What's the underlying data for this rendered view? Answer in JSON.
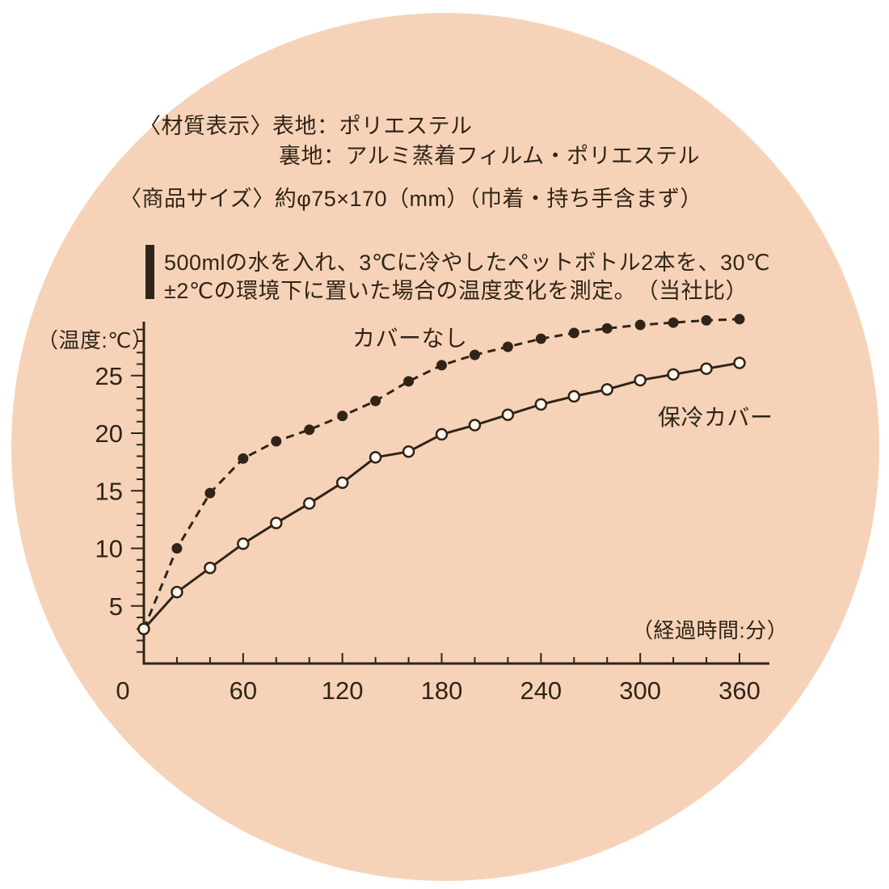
{
  "colors": {
    "background": "#ffffff",
    "circle": "#f6d3b8",
    "ink": "#302418",
    "open_marker_fill": "#fff7ec"
  },
  "header": {
    "material_line1": "〈材質表示〉表地：ポリエステル",
    "material_line2": "裏地：アルミ蒸着フィルム・ポリエステル",
    "size_line": "〈商品サイズ〉約φ75×170（mm）（巾着・持ち手含まず）",
    "test_line1": "500mlの水を入れ、3℃に冷やしたペットボトル2本を、30℃",
    "test_line2": "±2℃の環境下に置いた場合の温度変化を測定。　（当社比）"
  },
  "chart_data": {
    "type": "line",
    "title": "",
    "ylabel": "（温度:℃）",
    "xlabel": "（経過時間:分）",
    "xlim": [
      0,
      378
    ],
    "ylim": [
      0,
      30
    ],
    "x_ticks": [
      0,
      60,
      120,
      180,
      240,
      300,
      360
    ],
    "y_ticks": [
      5,
      10,
      15,
      20,
      25
    ],
    "grid": false,
    "legend_position": "inline",
    "x": [
      0,
      20,
      40,
      60,
      80,
      100,
      120,
      140,
      160,
      180,
      200,
      220,
      240,
      260,
      280,
      300,
      320,
      340,
      360
    ],
    "series": [
      {
        "name": "カバーなし",
        "style": "dashed",
        "marker": "filled",
        "values": [
          3,
          10,
          14.8,
          17.8,
          19.3,
          20.3,
          21.5,
          22.8,
          24.5,
          25.9,
          26.8,
          27.5,
          28.2,
          28.7,
          29.1,
          29.4,
          29.6,
          29.8,
          29.9
        ]
      },
      {
        "name": "保冷カバー",
        "style": "solid",
        "marker": "open",
        "values": [
          3,
          6.2,
          8.3,
          10.4,
          12.2,
          13.9,
          15.7,
          17.9,
          18.4,
          19.9,
          20.7,
          21.6,
          22.5,
          23.2,
          23.8,
          24.6,
          25.1,
          25.6,
          26.1
        ]
      }
    ]
  }
}
